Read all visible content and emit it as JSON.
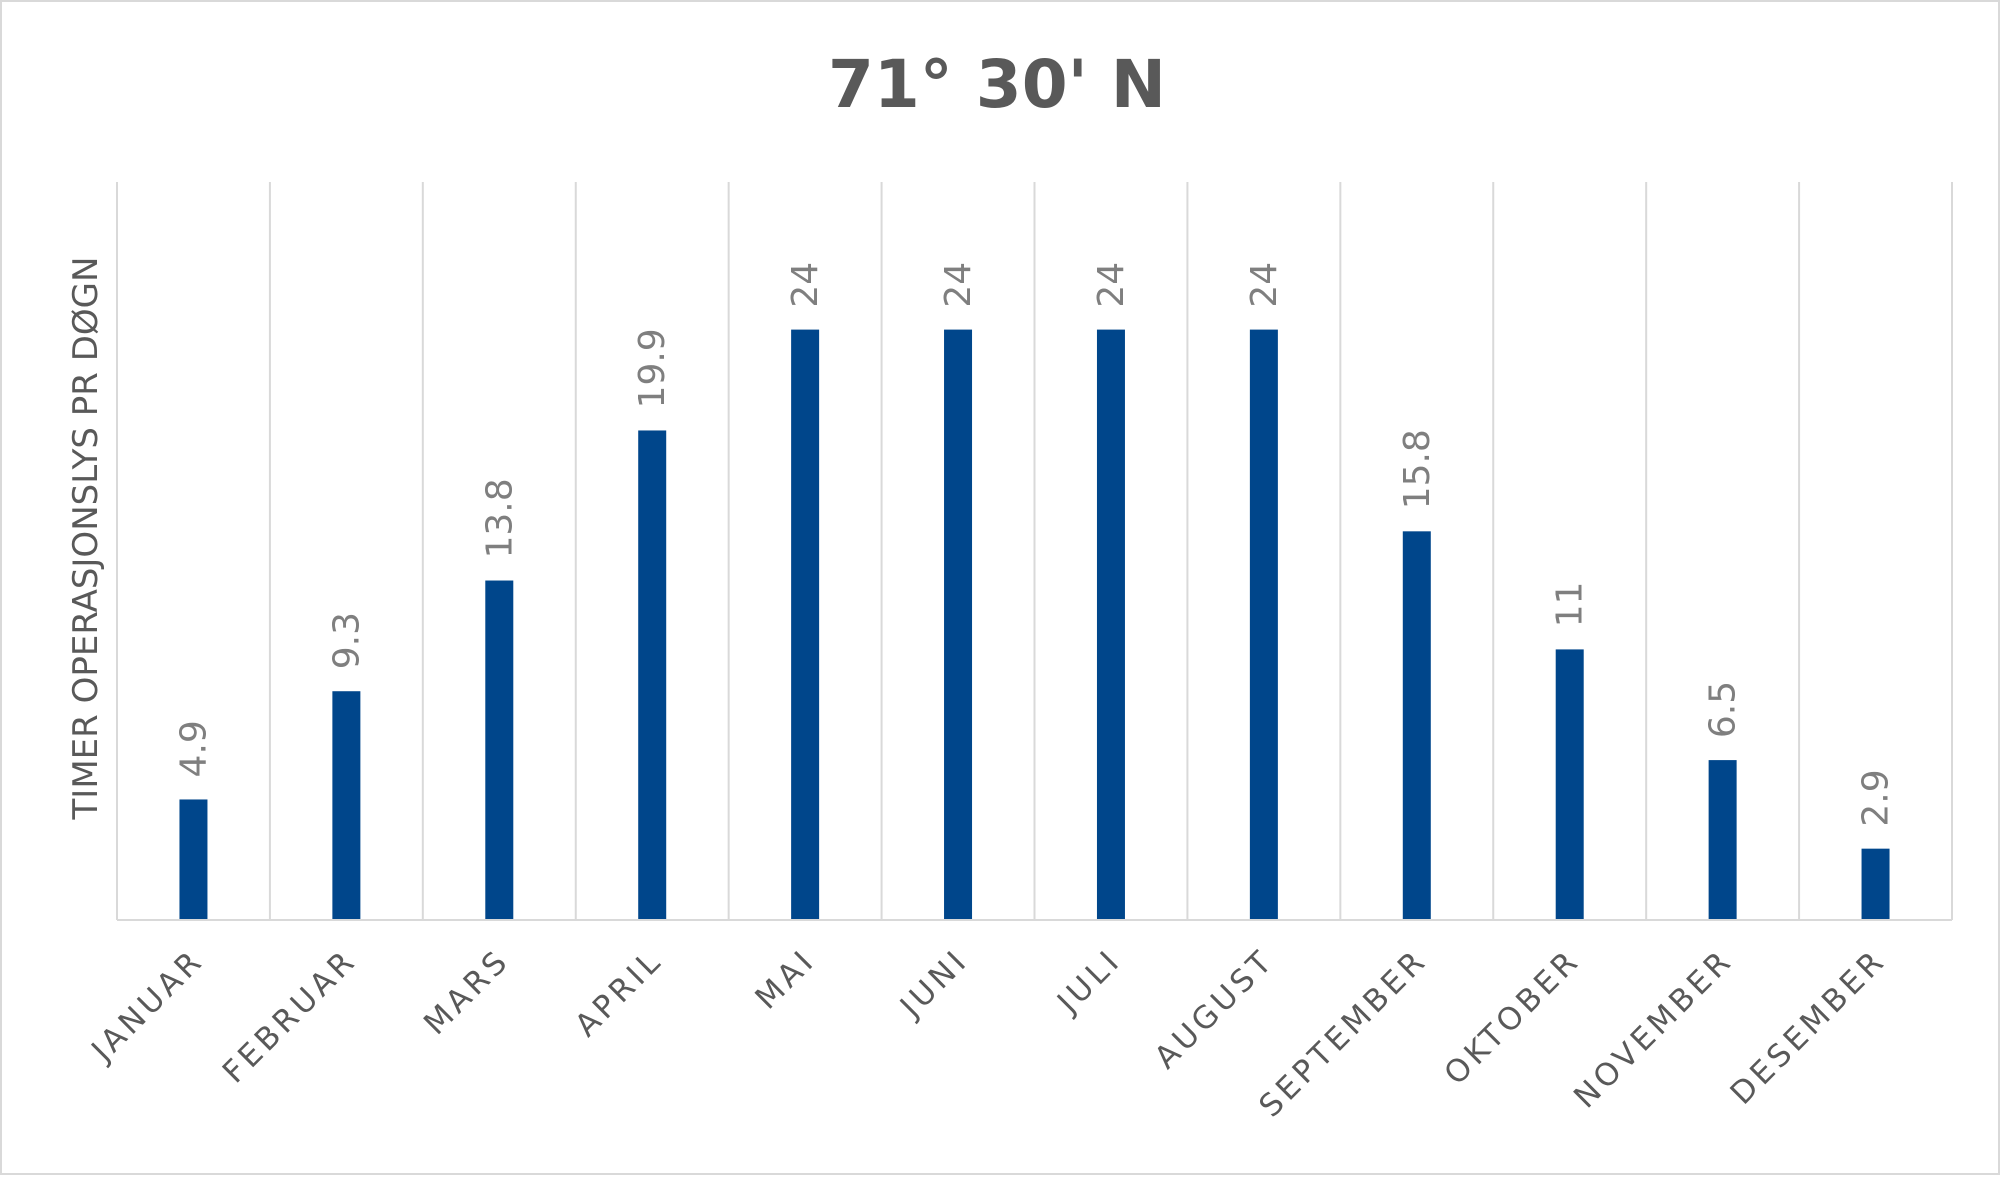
{
  "chart_data": {
    "type": "bar",
    "title": "71° 30' N",
    "xlabel": "",
    "ylabel": "TIMER OPERASJONSLYS PR DØGN",
    "categories": [
      "JANUAR",
      "FEBRUAR",
      "MARS",
      "APRIL",
      "MAI",
      "JUNI",
      "JULI",
      "AUGUST",
      "SEPTEMBER",
      "OKTOBER",
      "NOVEMBER",
      "DESEMBER"
    ],
    "values": [
      4.9,
      9.3,
      13.8,
      19.9,
      24,
      24,
      24,
      24,
      15.8,
      11,
      6.5,
      2.9
    ],
    "value_labels": [
      "4.9",
      "9.3",
      "13.8",
      "19.9",
      "24",
      "24",
      "24",
      "24",
      "15.8",
      "11",
      "6.5",
      "2.9"
    ],
    "ylim": [
      0,
      30
    ],
    "grid": "vertical",
    "legend": "none",
    "colors": {
      "bar": "#00468B",
      "title": "#595959",
      "labels": "#595959",
      "value_labels": "#7f7f7f",
      "grid": "#d9d9d9"
    }
  }
}
